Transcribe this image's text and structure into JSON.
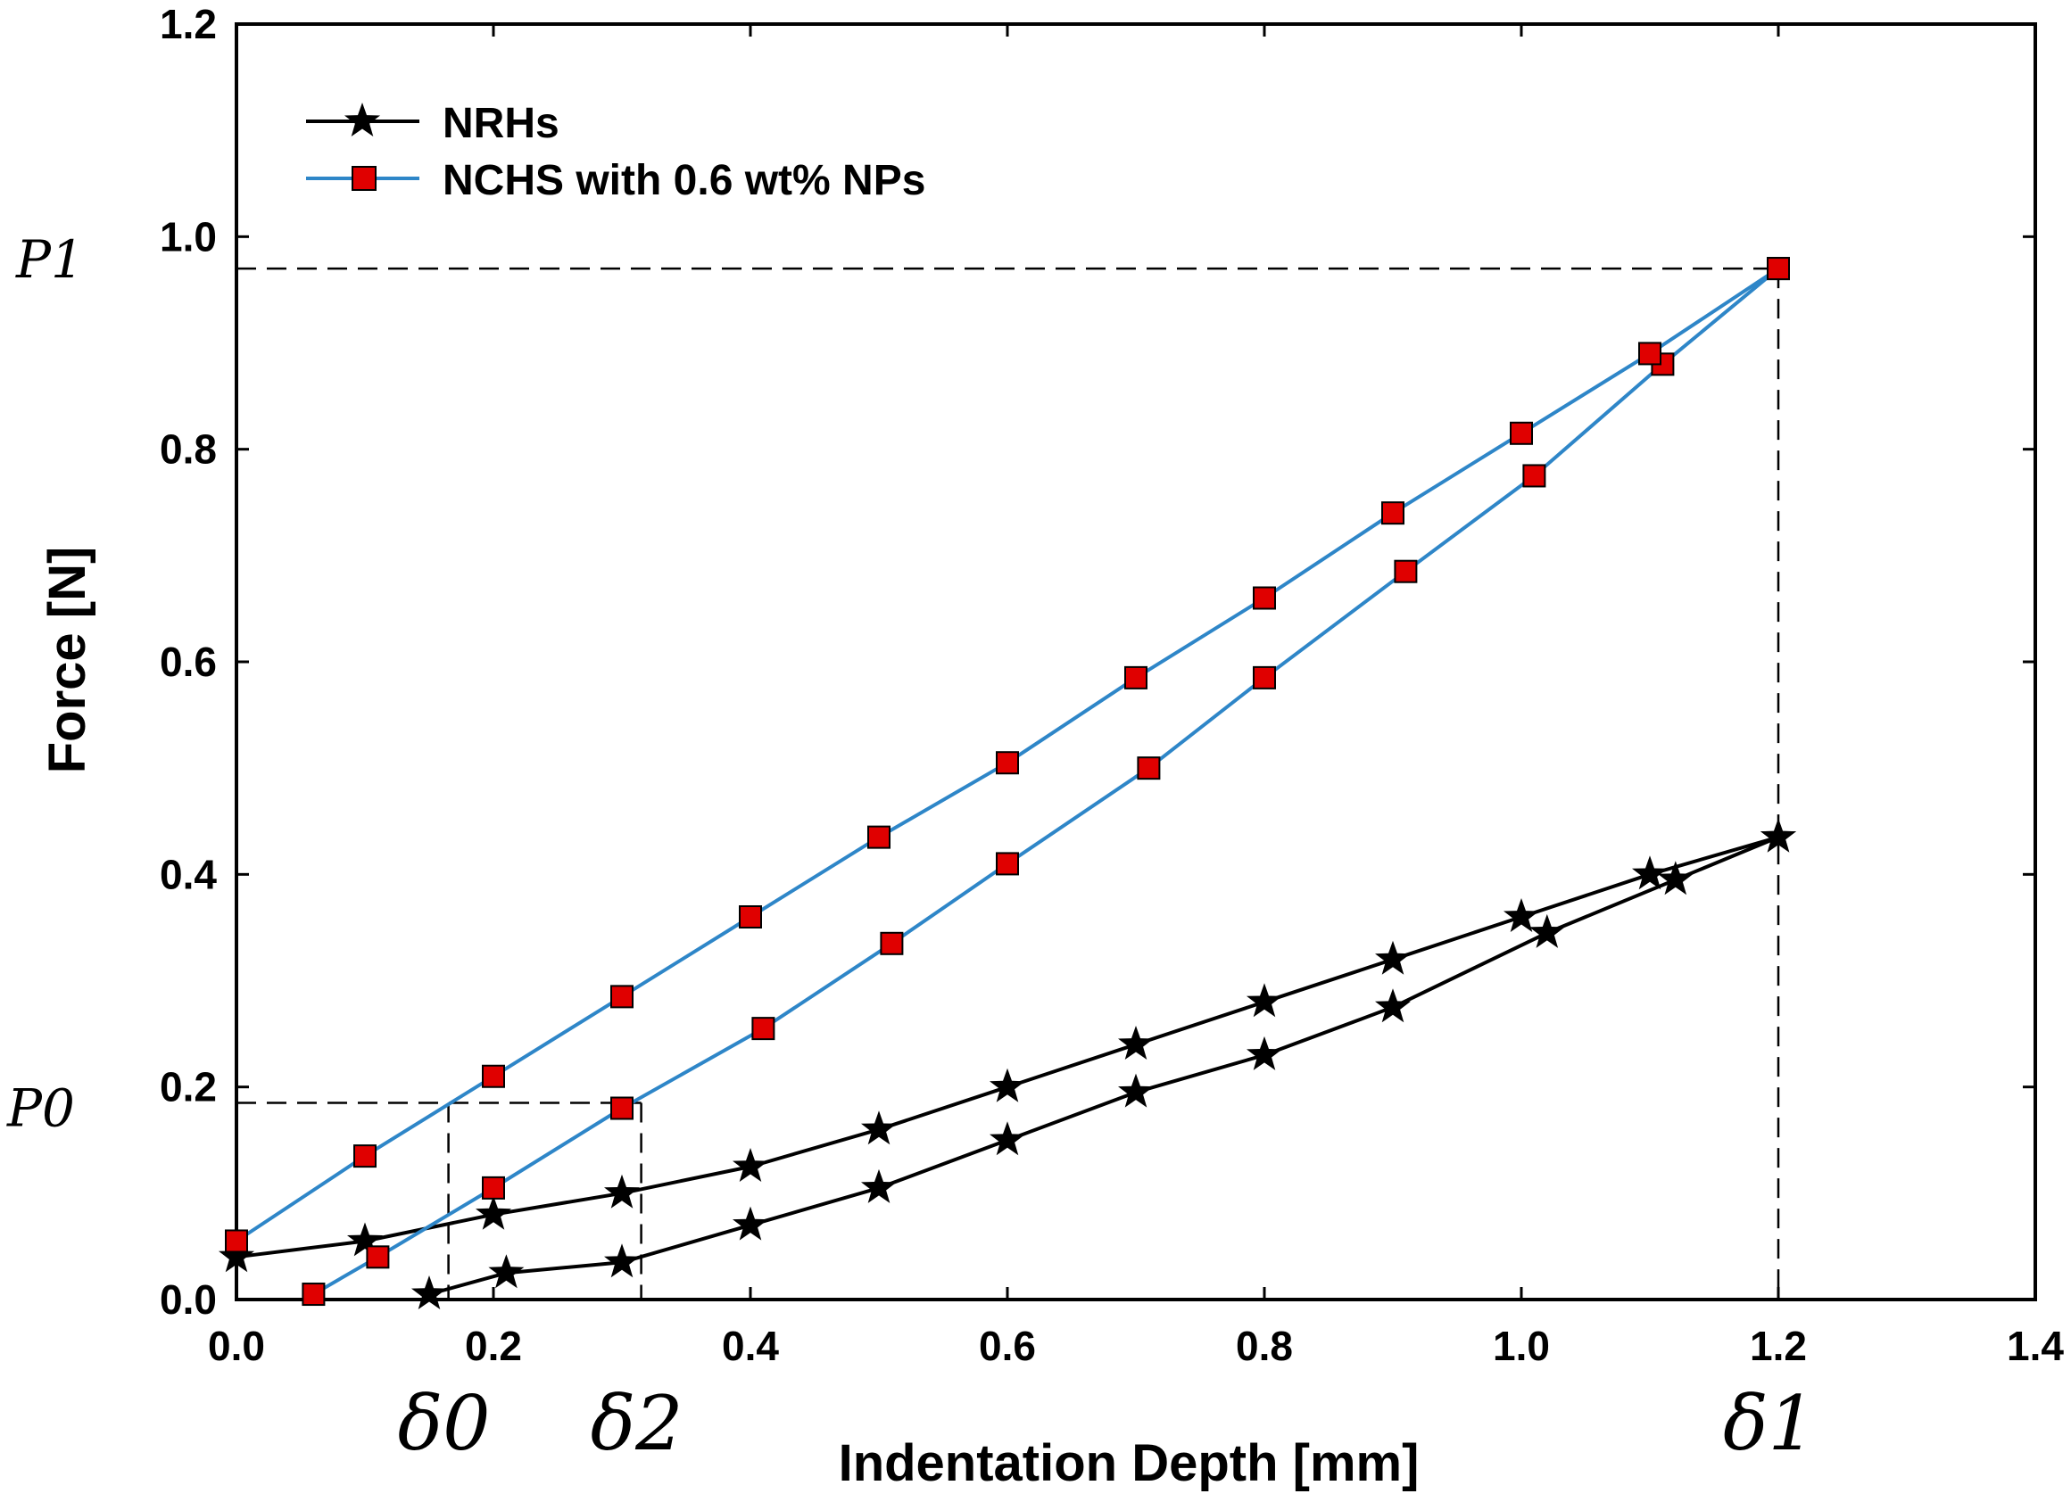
{
  "chart_data": {
    "type": "line",
    "xlabel": "Indentation Depth [mm]",
    "ylabel": "Force [N]",
    "xlim": [
      0.0,
      1.4
    ],
    "ylim": [
      0.0,
      1.2
    ],
    "xticks": [
      "0.0",
      "0.2",
      "0.4",
      "0.6",
      "0.8",
      "1.0",
      "1.2",
      "1.4"
    ],
    "yticks": [
      "0.0",
      "0.2",
      "0.4",
      "0.6",
      "0.8",
      "1.0",
      "1.2"
    ],
    "legend_position": "top-left",
    "series": [
      {
        "name": "NRHs",
        "color": "#000000",
        "marker": "star",
        "loading": [
          [
            0.15,
            0.005
          ],
          [
            0.21,
            0.025
          ],
          [
            0.3,
            0.035
          ],
          [
            0.4,
            0.07
          ],
          [
            0.5,
            0.105
          ],
          [
            0.6,
            0.15
          ],
          [
            0.7,
            0.195
          ],
          [
            0.8,
            0.23
          ],
          [
            0.9,
            0.275
          ],
          [
            1.02,
            0.345
          ],
          [
            1.12,
            0.395
          ],
          [
            1.2,
            0.435
          ]
        ],
        "unloading": [
          [
            1.2,
            0.435
          ],
          [
            1.1,
            0.4
          ],
          [
            1.0,
            0.36
          ],
          [
            0.9,
            0.32
          ],
          [
            0.8,
            0.28
          ],
          [
            0.7,
            0.24
          ],
          [
            0.6,
            0.2
          ],
          [
            0.5,
            0.16
          ],
          [
            0.4,
            0.125
          ],
          [
            0.3,
            0.1
          ],
          [
            0.2,
            0.08
          ],
          [
            0.1,
            0.055
          ],
          [
            0.0,
            0.04
          ]
        ]
      },
      {
        "name": "NCHS with 0.6 wt% NPs",
        "color": "#2e86c8",
        "marker": "square",
        "marker_color": "#e00000",
        "loading": [
          [
            0.06,
            0.005
          ],
          [
            0.11,
            0.04
          ],
          [
            0.2,
            0.105
          ],
          [
            0.3,
            0.18
          ],
          [
            0.41,
            0.255
          ],
          [
            0.51,
            0.335
          ],
          [
            0.6,
            0.41
          ],
          [
            0.71,
            0.5
          ],
          [
            0.8,
            0.585
          ],
          [
            0.91,
            0.685
          ],
          [
            1.01,
            0.775
          ],
          [
            1.11,
            0.88
          ],
          [
            1.2,
            0.97
          ]
        ],
        "unloading": [
          [
            1.2,
            0.97
          ],
          [
            1.1,
            0.89
          ],
          [
            1.0,
            0.815
          ],
          [
            0.9,
            0.74
          ],
          [
            0.8,
            0.66
          ],
          [
            0.7,
            0.585
          ],
          [
            0.6,
            0.505
          ],
          [
            0.5,
            0.435
          ],
          [
            0.4,
            0.36
          ],
          [
            0.3,
            0.285
          ],
          [
            0.2,
            0.21
          ],
          [
            0.1,
            0.135
          ],
          [
            0.0,
            0.055
          ]
        ]
      }
    ],
    "annotations": {
      "P1": {
        "label": "P1",
        "value": 0.97
      },
      "P0": {
        "label": "P0",
        "value": 0.185
      },
      "delta0": {
        "label": "δ0",
        "value": 0.165
      },
      "delta2": {
        "label": "δ2",
        "value": 0.315
      },
      "delta1": {
        "label": "δ1",
        "value": 1.2
      }
    }
  }
}
